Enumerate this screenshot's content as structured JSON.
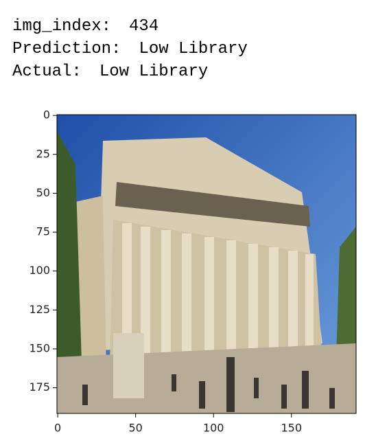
{
  "output": [
    {
      "label": "img_index:",
      "value": 434
    },
    {
      "label": "Prediction:",
      "value": "Low Library"
    },
    {
      "label": "Actual:",
      "value": "Low Library"
    }
  ],
  "chart_data": {
    "type": "image",
    "xlim": [
      -0.5,
      191.5
    ],
    "ylim": [
      191.5,
      -0.5
    ],
    "xticks": [
      0,
      50,
      100,
      150
    ],
    "yticks": [
      0,
      25,
      50,
      75,
      100,
      125,
      150,
      175
    ]
  }
}
